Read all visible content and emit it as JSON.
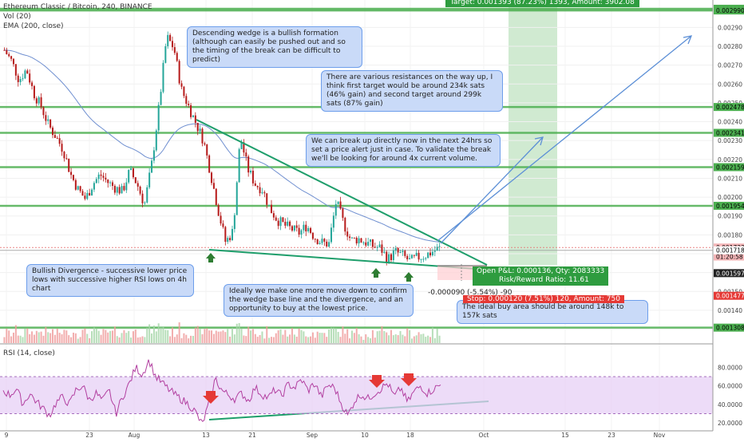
{
  "header": {
    "symbol_line": "Ethereum Classic / Bitcoin, 240, BINANCE",
    "vol_line": "Vol (20)",
    "ema_line": "EMA (200, close)",
    "rsi_line": "RSI (14, close)"
  },
  "annotations": {
    "wedge": "Descending wedge is a bullish formation (although can easily be pushed out and so the timing of the break can be difficult to predict)",
    "resistances": "There are various resistances on the way up, I think first target would be around 234k sats (46% gain) and second target around 299k sats (87% gain)",
    "breakup": "We can break up directly now in the next 24hrs so set a price alert just in case. To validate the break we'll be looking for around 4x current volume.",
    "divergence": "Bullish Divergence - successive lower price lows with successive higher RSI lows on 4h chart",
    "ideally": "Ideally we make one more move down to confirm the wedge base line and the divergence, and an opportunity to buy at the lowest price.",
    "buyarea": "The ideal buy area should be around 148k to 157k sats"
  },
  "position": {
    "target": "Target: 0.001393 (87.23%) 1393, Amount: 3902.08",
    "open_pl": "Open P&L: 0.000136, Qty: 2083333",
    "risk_reward": "Risk/Reward Ratio: 11.61",
    "stop": "Stop: 0.000120 (7.51%) 120, Amount: 750",
    "range_readout": "-0.000090 (-5.54%) -90"
  },
  "colors": {
    "resistance": "#4caf50",
    "wedge": "#1e9e6b",
    "ema": "#6f8fd0",
    "candle_up": "#26a69a",
    "candle_down": "#b71c1c",
    "rsi": "#b23fa0",
    "rsi_band": "#e7d0f5",
    "callout_bg": "#c9daf8",
    "target_zone": "#c8e6c9",
    "stop_zone": "#e53935",
    "price_tag": "#f4b6b8",
    "last_price_tag": "#222222",
    "arrow": "#5c8fd6"
  },
  "chart_data": [
    {
      "type": "candlestick",
      "title": "Ethereum Classic / Bitcoin, 240, BINANCE",
      "ylim": [
        0.00126,
        0.00302
      ],
      "y_tick_labels": [
        "0.00290",
        "0.00280",
        "0.00270",
        "0.00260",
        "0.00250",
        "0.00240",
        "0.00230",
        "0.00220",
        "0.00210",
        "0.00200",
        "0.00190",
        "0.00180",
        "0.00170",
        "0.00160",
        "0.00150",
        "0.00140",
        "0.00130"
      ],
      "y_tick_values": [
        0.0029,
        0.0028,
        0.0027,
        0.0026,
        0.0025,
        0.0024,
        0.0023,
        0.0022,
        0.0021,
        0.002,
        0.0019,
        0.0018,
        0.0017,
        0.0016,
        0.0015,
        0.0014,
        0.0013
      ],
      "x_tick_labels": [
        "9",
        "23",
        "Aug",
        "13",
        "21",
        "Sep",
        "10",
        "18",
        "Oct",
        "15",
        "23",
        "Nov"
      ],
      "horizontal_levels": [
        0.002999,
        0.00299,
        0.002478,
        0.002341,
        0.002159,
        0.001954,
        0.001733,
        0.001718,
        0.001597,
        0.001477,
        0.001308
      ],
      "price_tags": [
        {
          "label": "0.002999",
          "value": 0.002999,
          "style": "resistance"
        },
        {
          "label": "0.002990",
          "value": 0.00299,
          "style": "resistance"
        },
        {
          "label": "0.002478",
          "value": 0.002478,
          "style": "resistance"
        },
        {
          "label": "0.002341",
          "value": 0.002341,
          "style": "resistance"
        },
        {
          "label": "0.002159",
          "value": 0.002159,
          "style": "resistance"
        },
        {
          "label": "0.001954",
          "value": 0.001954,
          "style": "resistance"
        },
        {
          "label": "0.001733",
          "value": 0.001733,
          "style": "pink"
        },
        {
          "label": "01:20:58",
          "value": 0.001685,
          "style": "countdown"
        },
        {
          "label": "0.001718",
          "value": 0.001718,
          "style": "plain"
        },
        {
          "label": "0.001597",
          "value": 0.001597,
          "style": "last"
        },
        {
          "label": "0.001477",
          "value": 0.001477,
          "style": "stop"
        },
        {
          "label": "0.001308",
          "value": 0.001308,
          "style": "resistance"
        }
      ],
      "price_path": [
        0.00278,
        0.00272,
        0.00262,
        0.00268,
        0.00255,
        0.00248,
        0.00238,
        0.00232,
        0.00225,
        0.00212,
        0.00204,
        0.00199,
        0.00207,
        0.00212,
        0.00208,
        0.00205,
        0.00203,
        0.00214,
        0.00207,
        0.00196,
        0.00218,
        0.00249,
        0.00285,
        0.00279,
        0.00257,
        0.00248,
        0.00239,
        0.0023,
        0.00212,
        0.00193,
        0.00176,
        0.00182,
        0.00232,
        0.00215,
        0.00207,
        0.00204,
        0.00194,
        0.00188,
        0.00185,
        0.00183,
        0.00181,
        0.00185,
        0.00179,
        0.00176,
        0.00175,
        0.00198,
        0.00186,
        0.00177,
        0.00178,
        0.00176,
        0.00174,
        0.00173,
        0.00167,
        0.00171,
        0.00169,
        0.00166,
        0.00168,
        0.00169,
        0.00171,
        0.00173
      ]
    },
    {
      "type": "line",
      "title": "RSI (14, close)",
      "ylim": [
        15,
        95
      ],
      "y_tick_labels": [
        "80.0000",
        "60.0000",
        "40.0000",
        "20.0000"
      ],
      "y_tick_values": [
        80,
        60,
        40,
        20
      ],
      "band": [
        30,
        70
      ],
      "values": [
        55,
        50,
        57,
        40,
        52,
        43,
        36,
        28,
        42,
        48,
        40,
        56,
        60,
        45,
        52,
        44,
        55,
        30,
        48,
        62,
        80,
        72,
        88,
        70,
        63,
        56,
        50,
        45,
        40,
        32,
        18,
        40,
        68,
        55,
        50,
        46,
        52,
        44,
        58,
        51,
        47,
        56,
        49,
        62,
        58,
        67,
        55,
        63,
        48,
        61,
        58,
        41,
        28,
        44,
        51,
        46,
        52,
        57,
        63,
        48,
        58,
        42,
        54,
        60,
        52,
        57,
        61
      ]
    }
  ]
}
